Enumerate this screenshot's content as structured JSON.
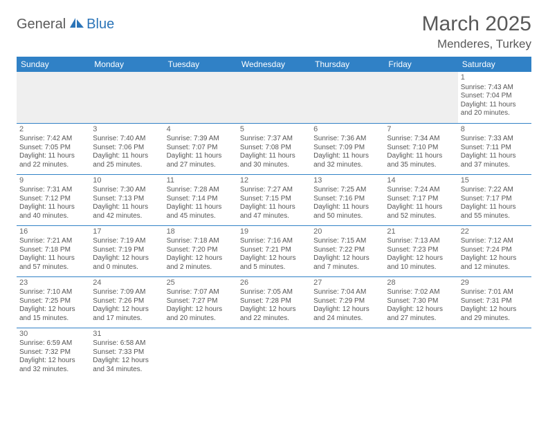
{
  "logo": {
    "text1": "General",
    "text2": "Blue"
  },
  "title": {
    "month": "March 2025",
    "location": "Menderes, Turkey"
  },
  "colors": {
    "header_bg": "#3081c6",
    "header_fg": "#ffffff",
    "rule": "#3081c6",
    "logo_blue": "#2b74b8",
    "text": "#555555"
  },
  "dayHeaders": [
    "Sunday",
    "Monday",
    "Tuesday",
    "Wednesday",
    "Thursday",
    "Friday",
    "Saturday"
  ],
  "weeks": [
    [
      null,
      null,
      null,
      null,
      null,
      null,
      {
        "n": "1",
        "sr": "Sunrise: 7:43 AM",
        "ss": "Sunset: 7:04 PM",
        "dl1": "Daylight: 11 hours",
        "dl2": "and 20 minutes."
      }
    ],
    [
      {
        "n": "2",
        "sr": "Sunrise: 7:42 AM",
        "ss": "Sunset: 7:05 PM",
        "dl1": "Daylight: 11 hours",
        "dl2": "and 22 minutes."
      },
      {
        "n": "3",
        "sr": "Sunrise: 7:40 AM",
        "ss": "Sunset: 7:06 PM",
        "dl1": "Daylight: 11 hours",
        "dl2": "and 25 minutes."
      },
      {
        "n": "4",
        "sr": "Sunrise: 7:39 AM",
        "ss": "Sunset: 7:07 PM",
        "dl1": "Daylight: 11 hours",
        "dl2": "and 27 minutes."
      },
      {
        "n": "5",
        "sr": "Sunrise: 7:37 AM",
        "ss": "Sunset: 7:08 PM",
        "dl1": "Daylight: 11 hours",
        "dl2": "and 30 minutes."
      },
      {
        "n": "6",
        "sr": "Sunrise: 7:36 AM",
        "ss": "Sunset: 7:09 PM",
        "dl1": "Daylight: 11 hours",
        "dl2": "and 32 minutes."
      },
      {
        "n": "7",
        "sr": "Sunrise: 7:34 AM",
        "ss": "Sunset: 7:10 PM",
        "dl1": "Daylight: 11 hours",
        "dl2": "and 35 minutes."
      },
      {
        "n": "8",
        "sr": "Sunrise: 7:33 AM",
        "ss": "Sunset: 7:11 PM",
        "dl1": "Daylight: 11 hours",
        "dl2": "and 37 minutes."
      }
    ],
    [
      {
        "n": "9",
        "sr": "Sunrise: 7:31 AM",
        "ss": "Sunset: 7:12 PM",
        "dl1": "Daylight: 11 hours",
        "dl2": "and 40 minutes."
      },
      {
        "n": "10",
        "sr": "Sunrise: 7:30 AM",
        "ss": "Sunset: 7:13 PM",
        "dl1": "Daylight: 11 hours",
        "dl2": "and 42 minutes."
      },
      {
        "n": "11",
        "sr": "Sunrise: 7:28 AM",
        "ss": "Sunset: 7:14 PM",
        "dl1": "Daylight: 11 hours",
        "dl2": "and 45 minutes."
      },
      {
        "n": "12",
        "sr": "Sunrise: 7:27 AM",
        "ss": "Sunset: 7:15 PM",
        "dl1": "Daylight: 11 hours",
        "dl2": "and 47 minutes."
      },
      {
        "n": "13",
        "sr": "Sunrise: 7:25 AM",
        "ss": "Sunset: 7:16 PM",
        "dl1": "Daylight: 11 hours",
        "dl2": "and 50 minutes."
      },
      {
        "n": "14",
        "sr": "Sunrise: 7:24 AM",
        "ss": "Sunset: 7:17 PM",
        "dl1": "Daylight: 11 hours",
        "dl2": "and 52 minutes."
      },
      {
        "n": "15",
        "sr": "Sunrise: 7:22 AM",
        "ss": "Sunset: 7:17 PM",
        "dl1": "Daylight: 11 hours",
        "dl2": "and 55 minutes."
      }
    ],
    [
      {
        "n": "16",
        "sr": "Sunrise: 7:21 AM",
        "ss": "Sunset: 7:18 PM",
        "dl1": "Daylight: 11 hours",
        "dl2": "and 57 minutes."
      },
      {
        "n": "17",
        "sr": "Sunrise: 7:19 AM",
        "ss": "Sunset: 7:19 PM",
        "dl1": "Daylight: 12 hours",
        "dl2": "and 0 minutes."
      },
      {
        "n": "18",
        "sr": "Sunrise: 7:18 AM",
        "ss": "Sunset: 7:20 PM",
        "dl1": "Daylight: 12 hours",
        "dl2": "and 2 minutes."
      },
      {
        "n": "19",
        "sr": "Sunrise: 7:16 AM",
        "ss": "Sunset: 7:21 PM",
        "dl1": "Daylight: 12 hours",
        "dl2": "and 5 minutes."
      },
      {
        "n": "20",
        "sr": "Sunrise: 7:15 AM",
        "ss": "Sunset: 7:22 PM",
        "dl1": "Daylight: 12 hours",
        "dl2": "and 7 minutes."
      },
      {
        "n": "21",
        "sr": "Sunrise: 7:13 AM",
        "ss": "Sunset: 7:23 PM",
        "dl1": "Daylight: 12 hours",
        "dl2": "and 10 minutes."
      },
      {
        "n": "22",
        "sr": "Sunrise: 7:12 AM",
        "ss": "Sunset: 7:24 PM",
        "dl1": "Daylight: 12 hours",
        "dl2": "and 12 minutes."
      }
    ],
    [
      {
        "n": "23",
        "sr": "Sunrise: 7:10 AM",
        "ss": "Sunset: 7:25 PM",
        "dl1": "Daylight: 12 hours",
        "dl2": "and 15 minutes."
      },
      {
        "n": "24",
        "sr": "Sunrise: 7:09 AM",
        "ss": "Sunset: 7:26 PM",
        "dl1": "Daylight: 12 hours",
        "dl2": "and 17 minutes."
      },
      {
        "n": "25",
        "sr": "Sunrise: 7:07 AM",
        "ss": "Sunset: 7:27 PM",
        "dl1": "Daylight: 12 hours",
        "dl2": "and 20 minutes."
      },
      {
        "n": "26",
        "sr": "Sunrise: 7:05 AM",
        "ss": "Sunset: 7:28 PM",
        "dl1": "Daylight: 12 hours",
        "dl2": "and 22 minutes."
      },
      {
        "n": "27",
        "sr": "Sunrise: 7:04 AM",
        "ss": "Sunset: 7:29 PM",
        "dl1": "Daylight: 12 hours",
        "dl2": "and 24 minutes."
      },
      {
        "n": "28",
        "sr": "Sunrise: 7:02 AM",
        "ss": "Sunset: 7:30 PM",
        "dl1": "Daylight: 12 hours",
        "dl2": "and 27 minutes."
      },
      {
        "n": "29",
        "sr": "Sunrise: 7:01 AM",
        "ss": "Sunset: 7:31 PM",
        "dl1": "Daylight: 12 hours",
        "dl2": "and 29 minutes."
      }
    ],
    [
      {
        "n": "30",
        "sr": "Sunrise: 6:59 AM",
        "ss": "Sunset: 7:32 PM",
        "dl1": "Daylight: 12 hours",
        "dl2": "and 32 minutes."
      },
      {
        "n": "31",
        "sr": "Sunrise: 6:58 AM",
        "ss": "Sunset: 7:33 PM",
        "dl1": "Daylight: 12 hours",
        "dl2": "and 34 minutes."
      },
      null,
      null,
      null,
      null,
      null
    ]
  ]
}
